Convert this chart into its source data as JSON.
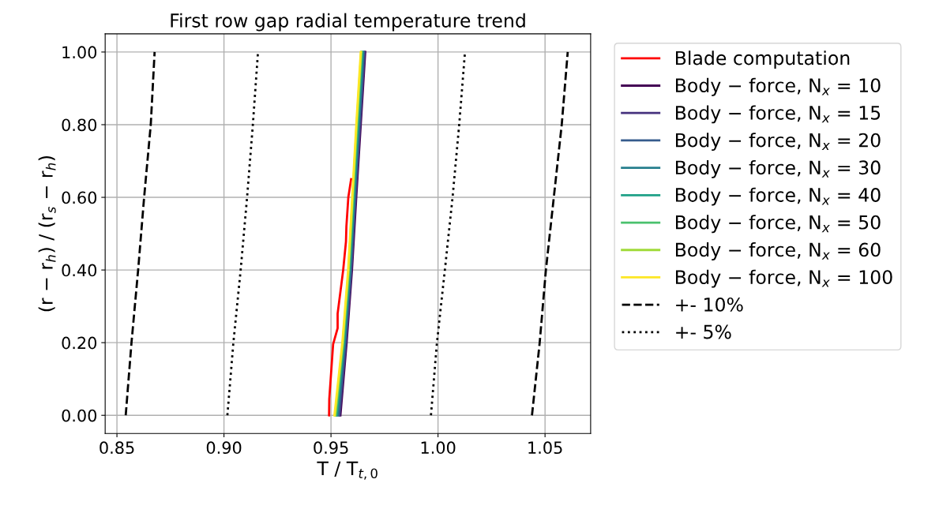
{
  "chart_data": {
    "type": "line",
    "title": "First row gap radial temperature trend",
    "xlabel": "T / T$_{t,0}$",
    "ylabel": "(r − r$_{h}$) / (r$_{s}$ − r$_{h}$)",
    "xlim": [
      0.8445,
      1.0713
    ],
    "ylim": [
      -0.05,
      1.05
    ],
    "xticks": [
      {
        "value": 0.85,
        "label": "0.85"
      },
      {
        "value": 0.9,
        "label": "0.90"
      },
      {
        "value": 0.95,
        "label": "0.95"
      },
      {
        "value": 1.0,
        "label": "1.00"
      },
      {
        "value": 1.05,
        "label": "1.05"
      }
    ],
    "yticks": [
      {
        "value": 0,
        "label": "0.00"
      },
      {
        "value": 0.2,
        "label": "0.20"
      },
      {
        "value": 0.4,
        "label": "0.40"
      },
      {
        "value": 0.6,
        "label": "0.60"
      },
      {
        "value": 0.8,
        "label": "0.80"
      },
      {
        "value": 1.0,
        "label": "1.00"
      }
    ],
    "grid": true,
    "legend": "right",
    "marker": "none",
    "series": [
      {
        "name": "Blade computation",
        "color": "#ff0000",
        "line_style": "solid",
        "x": [
          0.9491,
          0.9492,
          0.951,
          0.9531,
          0.9531,
          0.9557,
          0.957,
          0.9572,
          0.9581,
          0.9594
        ],
        "values": [
          0,
          0.045,
          0.196,
          0.24,
          0.28,
          0.4,
          0.478,
          0.52,
          0.6,
          0.65
        ]
      },
      {
        "name": "Body − force, N$_{x}$ = 10",
        "color": "#440154",
        "line_style": "solid",
        "x": [
          0.9544,
          0.9573,
          0.9598,
          0.9618,
          0.9639,
          0.966
        ],
        "values": [
          0,
          0.2,
          0.4,
          0.6,
          0.8,
          1.0
        ]
      },
      {
        "name": "Body − force, N$_{x}$ = 15",
        "color": "#46327e",
        "line_style": "solid",
        "x": [
          0.954,
          0.957,
          0.9595,
          0.9615,
          0.9636,
          0.9657
        ],
        "values": [
          0,
          0.2,
          0.4,
          0.6,
          0.8,
          1.0
        ]
      },
      {
        "name": "Body − force, N$_{x}$ = 20",
        "color": "#365c8d",
        "line_style": "solid",
        "x": [
          0.9536,
          0.9567,
          0.9593,
          0.9612,
          0.9633,
          0.9654
        ],
        "values": [
          0,
          0.2,
          0.4,
          0.6,
          0.8,
          1.0
        ]
      },
      {
        "name": "Body − force, N$_{x}$ = 30",
        "color": "#277f8e",
        "line_style": "solid",
        "x": [
          0.953,
          0.9563,
          0.9589,
          0.9609,
          0.9629,
          0.965
        ],
        "values": [
          0,
          0.2,
          0.4,
          0.6,
          0.8,
          1.0
        ]
      },
      {
        "name": "Body − force, N$_{x}$ = 40",
        "color": "#1fa187",
        "line_style": "solid",
        "x": [
          0.9526,
          0.956,
          0.9586,
          0.9606,
          0.9625,
          0.9646
        ],
        "values": [
          0,
          0.2,
          0.4,
          0.6,
          0.8,
          1.0
        ]
      },
      {
        "name": "Body − force, N$_{x}$ = 50",
        "color": "#4ac16d",
        "line_style": "solid",
        "x": [
          0.9522,
          0.9557,
          0.9584,
          0.9603,
          0.9622,
          0.9643
        ],
        "values": [
          0,
          0.2,
          0.4,
          0.6,
          0.8,
          1.0
        ]
      },
      {
        "name": "Body − force, N$_{x}$ = 60",
        "color": "#a0da39",
        "line_style": "solid",
        "x": [
          0.9519,
          0.9555,
          0.9582,
          0.9601,
          0.962,
          0.9641
        ],
        "values": [
          0,
          0.2,
          0.4,
          0.6,
          0.8,
          1.0
        ]
      },
      {
        "name": "Body − force, N$_{x}$ = 100",
        "color": "#fde725",
        "line_style": "solid",
        "x": [
          0.9516,
          0.9553,
          0.958,
          0.9599,
          0.9618,
          0.9639
        ],
        "values": [
          0,
          0.2,
          0.4,
          0.6,
          0.8,
          1.0
        ]
      },
      {
        "name": "+- 10%",
        "color": "#000000",
        "line_style": "dashed",
        "x": [
          0.8541,
          0.8568,
          0.8599,
          0.8627,
          0.8658,
          0.8676
        ],
        "values": [
          0,
          0.2,
          0.4,
          0.6,
          0.8,
          1.0
        ]
      },
      {
        "color": "#000000",
        "line_style": "dashed",
        "x": [
          1.0439,
          1.0475,
          1.0504,
          1.0541,
          1.0578,
          1.0606
        ],
        "values": [
          0,
          0.2,
          0.4,
          0.6,
          0.8,
          1.0
        ]
      },
      {
        "name": "+- 5%",
        "color": "#000000",
        "line_style": "dotted",
        "x": [
          0.9016,
          0.9044,
          0.9078,
          0.9108,
          0.9135,
          0.9159
        ],
        "values": [
          0,
          0.2,
          0.4,
          0.6,
          0.8,
          1.0
        ]
      },
      {
        "color": "#000000",
        "line_style": "dotted",
        "x": [
          0.9967,
          0.9995,
          1.0032,
          1.0068,
          1.0099,
          1.0126
        ],
        "values": [
          0,
          0.2,
          0.4,
          0.6,
          0.8,
          1.0
        ]
      }
    ]
  }
}
